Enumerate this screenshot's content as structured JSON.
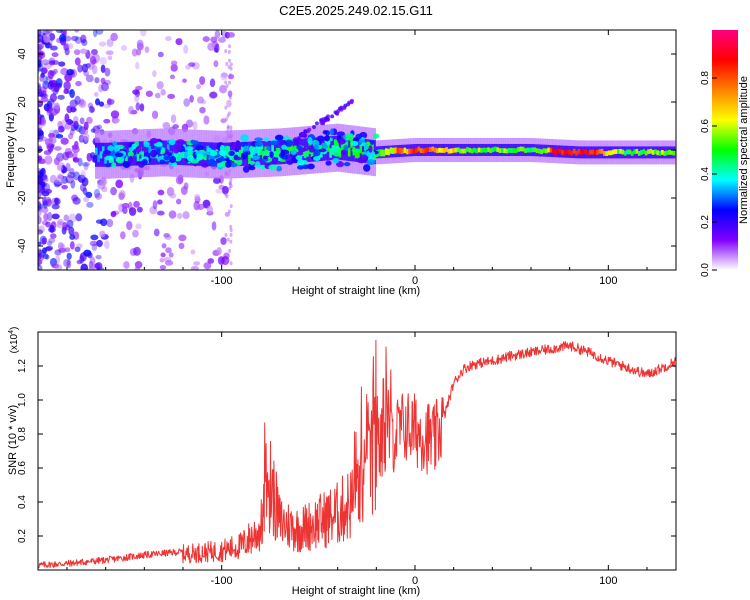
{
  "title": "C2E5.2025.249.02.15.G11",
  "chart_data": [
    {
      "type": "heatmap",
      "name": "spectrogram",
      "xlabel": "Height of straight line (km)",
      "ylabel": "Frequency (Hz)",
      "xlim": [
        -195,
        135
      ],
      "ylim": [
        -50,
        50
      ],
      "xticks": [
        -100,
        0,
        100
      ],
      "xtick_labels": [
        "-100",
        "0",
        "100"
      ],
      "yticks": [
        -40,
        -20,
        0,
        20,
        40
      ],
      "ytick_labels": [
        "-40",
        "-20",
        "0",
        "20",
        "40"
      ],
      "colorbar": {
        "label": "Normalized spectral amplitude",
        "range": [
          0,
          1
        ],
        "ticks": [
          0.0,
          0.2,
          0.4,
          0.6,
          0.8
        ],
        "tick_labels": [
          "0.0",
          "0.2",
          "0.4",
          "0.6",
          "0.8"
        ],
        "colors": [
          "#ffffff",
          "#8000ff",
          "#0000ff",
          "#00ffff",
          "#00ff00",
          "#ffff00",
          "#ff8000",
          "#ff0000",
          "#ff0080"
        ]
      },
      "ridge": {
        "description_values": [
          {
            "x": -160,
            "center_hz": -2,
            "width_hz": 3,
            "amp": 0.35
          },
          {
            "x": -130,
            "center_hz": -1,
            "width_hz": 3,
            "amp": 0.4
          },
          {
            "x": -100,
            "center_hz": -2,
            "width_hz": 4,
            "amp": 0.4
          },
          {
            "x": -70,
            "center_hz": -1,
            "width_hz": 4,
            "amp": 0.45
          },
          {
            "x": -40,
            "center_hz": 1,
            "width_hz": 4,
            "amp": 0.45
          },
          {
            "x": -20,
            "center_hz": -1,
            "width_hz": 3,
            "amp": 0.5
          },
          {
            "x": 0,
            "center_hz": 0,
            "width_hz": 2,
            "amp": 0.8
          },
          {
            "x": 30,
            "center_hz": 0,
            "width_hz": 2,
            "amp": 0.55
          },
          {
            "x": 60,
            "center_hz": 0,
            "width_hz": 2,
            "amp": 0.5
          },
          {
            "x": 85,
            "center_hz": -1,
            "width_hz": 2,
            "amp": 0.85
          },
          {
            "x": 110,
            "center_hz": -1,
            "width_hz": 2,
            "amp": 0.5
          },
          {
            "x": 135,
            "center_hz": -1,
            "width_hz": 2,
            "amp": 0.6
          }
        ]
      }
    },
    {
      "type": "line",
      "name": "snr",
      "xlabel": "Height of straight line (km)",
      "ylabel": "SNR (10 * v/v)",
      "y_multiplier_label": "(x10",
      "y_multiplier_exp": "4",
      "y_multiplier_close": ")",
      "xlim": [
        -195,
        135
      ],
      "ylim": [
        0,
        1.4
      ],
      "xticks": [
        -100,
        0,
        100
      ],
      "xtick_labels": [
        "-100",
        "0",
        "100"
      ],
      "yticks": [
        0.2,
        0.4,
        0.6,
        0.8,
        1.0,
        1.2
      ],
      "ytick_labels": [
        "0.2",
        "0.4",
        "0.6",
        "0.8",
        "1.0",
        "1.2"
      ],
      "color": "#ee3333",
      "x": [
        -195,
        -180,
        -160,
        -140,
        -120,
        -100,
        -90,
        -80,
        -75,
        -70,
        -60,
        -50,
        -40,
        -30,
        -25,
        -20,
        -15,
        -10,
        -5,
        0,
        5,
        10,
        15,
        20,
        25,
        30,
        40,
        50,
        60,
        70,
        80,
        90,
        100,
        110,
        120,
        130,
        135
      ],
      "y": [
        0.02,
        0.03,
        0.05,
        0.08,
        0.1,
        0.12,
        0.15,
        0.25,
        0.55,
        0.3,
        0.25,
        0.3,
        0.35,
        0.45,
        0.6,
        0.7,
        0.75,
        0.8,
        0.85,
        0.82,
        0.8,
        0.75,
        0.9,
        1.1,
        1.18,
        1.21,
        1.23,
        1.26,
        1.28,
        1.3,
        1.32,
        1.28,
        1.23,
        1.19,
        1.15,
        1.2,
        1.23
      ]
    }
  ]
}
